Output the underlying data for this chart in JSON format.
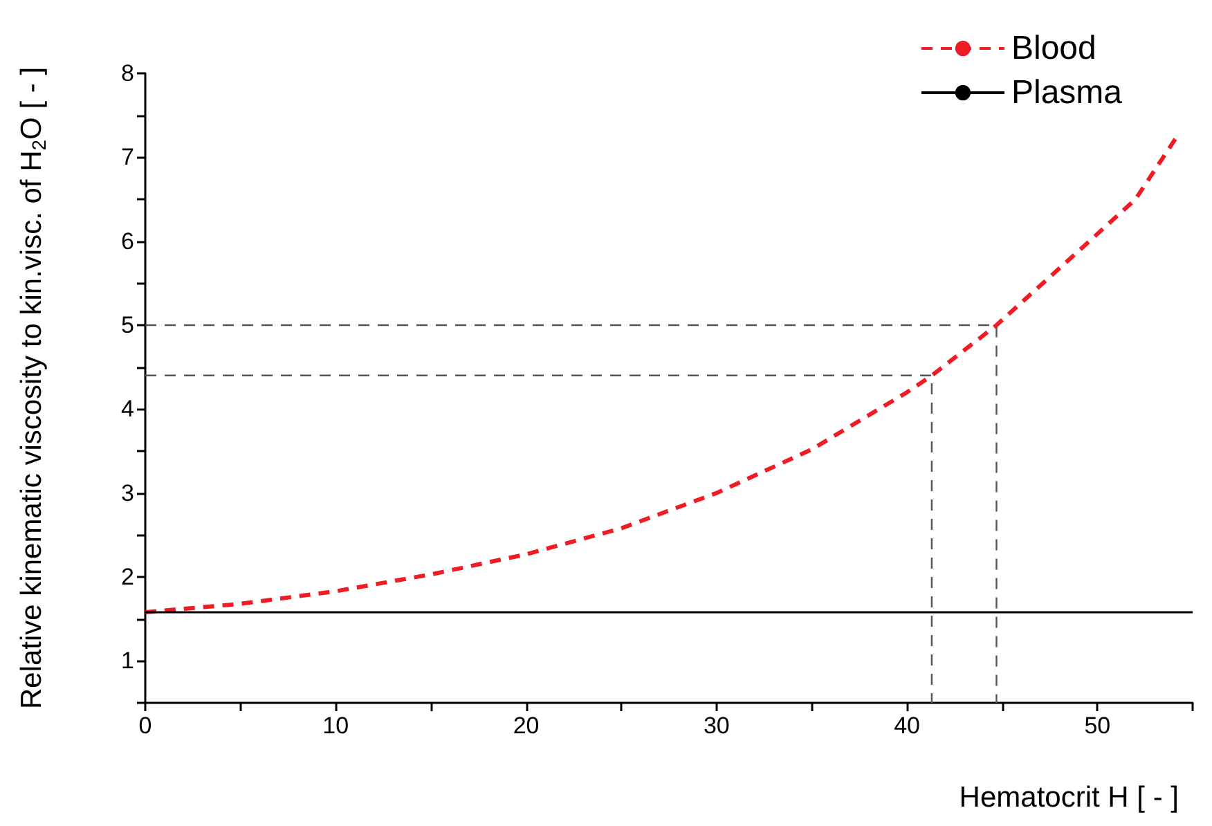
{
  "chart_data": {
    "type": "line",
    "xlabel": "Hematocrit H [ - ]",
    "ylabel": "Relative kinematic viscosity to kin.visc. of H$_{2}$O [ - ]",
    "xlim": [
      0,
      55
    ],
    "xticks": [
      0,
      {
        "value": 5,
        "label": null
      },
      10,
      {
        "value": 15,
        "label": null
      },
      20,
      {
        "value": 25,
        "label": null
      },
      30,
      {
        "value": 35,
        "label": null
      },
      40,
      {
        "value": 45,
        "label": null
      },
      50,
      {
        "value": 55,
        "label": null
      }
    ],
    "ylim": [
      0.5,
      8
    ],
    "yticks": [
      {
        "value": 0.5,
        "label": null
      },
      1,
      {
        "value": 1.5,
        "label": null
      },
      2,
      {
        "value": 2.5,
        "label": null
      },
      3,
      {
        "value": 3.5,
        "label": null
      },
      4,
      {
        "value": 4.5,
        "label": null
      },
      5,
      {
        "value": 5.5,
        "label": null
      },
      6,
      {
        "value": 6.5,
        "label": null
      },
      7,
      {
        "value": 7.5,
        "label": null
      },
      8
    ],
    "series": [
      {
        "name": "Blood",
        "color": "#ee1c25",
        "line_style": "dashed",
        "x": [
          0,
          5,
          10,
          15,
          20,
          25,
          30,
          35,
          40,
          41.3,
          44.7,
          48.8,
          52,
          54.3
        ],
        "values": [
          1.58,
          1.68,
          1.83,
          2.03,
          2.27,
          2.58,
          3.0,
          3.52,
          4.2,
          4.4,
          5.0,
          5.84,
          6.5,
          7.29
        ]
      },
      {
        "name": "Plasma",
        "color": "#000000",
        "line_style": "solid",
        "x": [
          0,
          55
        ],
        "values": [
          1.58,
          1.58
        ]
      },
      {
        "color": "#555555",
        "line_style": "dashed",
        "x": [
          0,
          41.3,
          41.3
        ],
        "values": [
          4.4,
          4.4,
          0.5
        ]
      },
      {
        "color": "#555555",
        "line_style": "dashed",
        "x": [
          0,
          44.7,
          44.7
        ],
        "values": [
          5.0,
          5.0,
          0.5
        ]
      }
    ],
    "marker": "none",
    "grid": false,
    "legend": "top right"
  }
}
